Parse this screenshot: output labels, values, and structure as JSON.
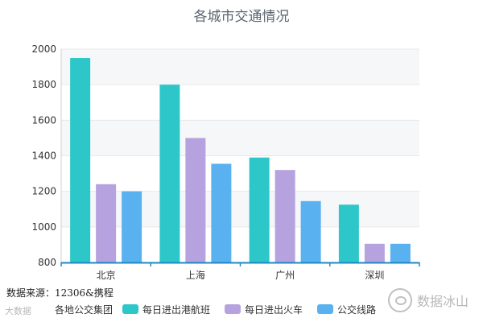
{
  "chart_data": {
    "type": "bar",
    "title": "各城市交通情况",
    "xlabel": "",
    "ylabel": "",
    "categories": [
      "北京",
      "上海",
      "广州",
      "深圳"
    ],
    "ylim": [
      800,
      2000
    ],
    "yticks": [
      800,
      1000,
      1200,
      1400,
      1600,
      1800,
      2000
    ],
    "grid": true,
    "legend_position": "bottom-left",
    "series": [
      {
        "name": "每日进出港航班",
        "color": "#2ec7c9",
        "values": [
          1950,
          1800,
          1390,
          1125
        ]
      },
      {
        "name": "每日进出火车",
        "color": "#b6a2de",
        "values": [
          1240,
          1500,
          1320,
          905
        ]
      },
      {
        "name": "公交线路",
        "color": "#5ab1ef",
        "values": [
          1200,
          1355,
          1145,
          905
        ]
      }
    ]
  },
  "source": "数据来源：12306&携程",
  "legend_prefix": "各地公交集团",
  "watermark_left": "大数据",
  "watermark_right": "数据冰山",
  "watermark_right_icon": "wechat-icon"
}
